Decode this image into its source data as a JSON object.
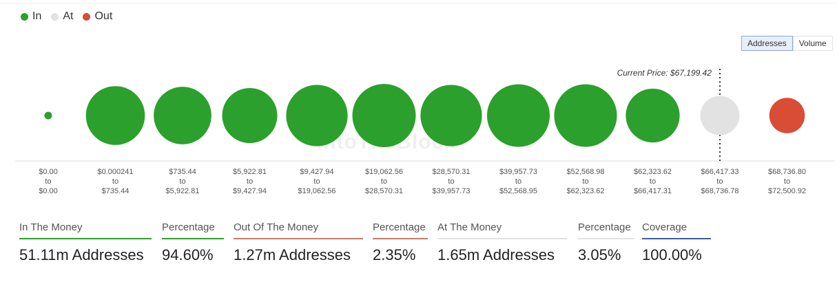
{
  "legend": [
    {
      "label": "In",
      "color": "#2ca02c"
    },
    {
      "label": "At",
      "color": "#e2e2e2"
    },
    {
      "label": "Out",
      "color": "#d94c35"
    }
  ],
  "toggle": {
    "addresses_label": "Addresses",
    "volume_label": "Volume",
    "active": "Addresses"
  },
  "chart_data": {
    "type": "bubble",
    "annotation": "Current Price: $67,199.42",
    "buckets": [
      {
        "from": "$0.00",
        "to": "$0.00",
        "status": "in",
        "size": 0.12
      },
      {
        "from": "$0.000241",
        "to": "$735.44",
        "status": "in",
        "size": 0.93
      },
      {
        "from": "$735.44",
        "to": "$5,922.81",
        "status": "in",
        "size": 0.91
      },
      {
        "from": "$5,922.81",
        "to": "$9,427.94",
        "status": "in",
        "size": 0.87
      },
      {
        "from": "$9,427.94",
        "to": "$19,062.56",
        "status": "in",
        "size": 0.97
      },
      {
        "from": "$19,062.56",
        "to": "$28,570.31",
        "status": "in",
        "size": 1.0
      },
      {
        "from": "$28,570.31",
        "to": "$39,957.73",
        "status": "in",
        "size": 0.97
      },
      {
        "from": "$39,957.73",
        "to": "$52,568.95",
        "status": "in",
        "size": 0.99
      },
      {
        "from": "$52,568.98",
        "to": "$62,323.62",
        "status": "in",
        "size": 0.99
      },
      {
        "from": "$62,323.62",
        "to": "$66,417.31",
        "status": "in",
        "size": 0.85
      },
      {
        "from": "$66,417.33",
        "to": "$68,736.78",
        "status": "at",
        "size": 0.62
      },
      {
        "from": "$68,736.80",
        "to": "$72,500.92",
        "status": "out",
        "size": 0.56
      }
    ],
    "range_connector": "to"
  },
  "stats": [
    {
      "label": "In The Money",
      "value": "51.11m Addresses",
      "color": "#2ca02c"
    },
    {
      "label": "Percentage",
      "value": "94.60%",
      "color": "#2ca02c"
    },
    {
      "label": "Out Of The Money",
      "value": "1.27m Addresses",
      "color": "#c9786a"
    },
    {
      "label": "Percentage",
      "value": "2.35%",
      "color": "#c9786a"
    },
    {
      "label": "At The Money",
      "value": "1.65m Addresses",
      "color": "#e2e2e2"
    },
    {
      "label": "Percentage",
      "value": "3.05%",
      "color": "#e2e2e2"
    },
    {
      "label": "Coverage",
      "value": "100.00%",
      "color": "#3b5aa8"
    }
  ]
}
